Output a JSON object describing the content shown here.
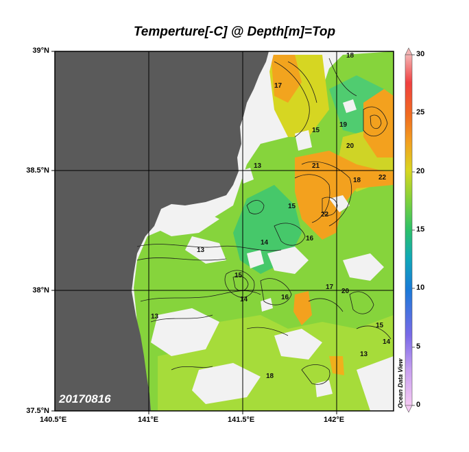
{
  "title": "Temperture[-C] @ Depth[m]=Top",
  "date_label": "20170816",
  "watermark": "Ocean Data View",
  "lat_labels": [
    "39°N",
    "38.5°N",
    "38°N",
    "37.5°N"
  ],
  "lon_labels": [
    "140.5°E",
    "141°E",
    "141.5°E",
    "142°E"
  ],
  "colorbar": {
    "ticks": [
      "30",
      "25",
      "20",
      "15",
      "10",
      "5",
      "0"
    ],
    "min": 0,
    "max": 30
  },
  "colors": {
    "land": "#5a5a5a",
    "missing": "#f2f2f2",
    "grid": "#000000"
  },
  "contour_labels": [
    "13",
    "14",
    "15",
    "16",
    "17",
    "18",
    "19",
    "20",
    "21",
    "22"
  ]
}
